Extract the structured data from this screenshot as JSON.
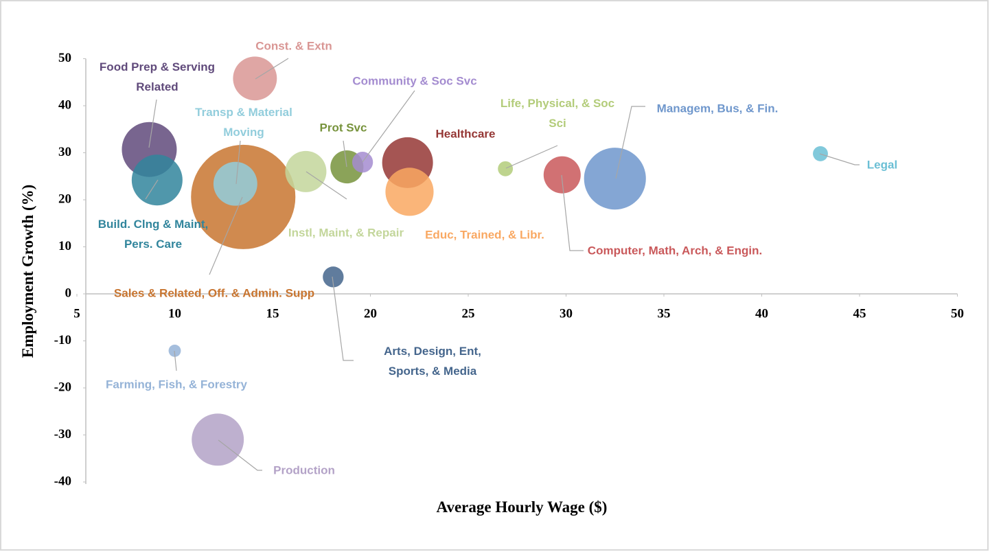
{
  "chart_data": {
    "type": "bubble",
    "xlabel": "Average Hourly Wage ($)",
    "ylabel": "Employment Growth (%)",
    "xlim": [
      5,
      50
    ],
    "xticks": [
      5,
      10,
      15,
      20,
      25,
      30,
      35,
      40,
      45,
      50
    ],
    "ylim": [
      -40,
      50
    ],
    "yticks": [
      -40,
      -30,
      -20,
      -10,
      0,
      10,
      20,
      30,
      40,
      50
    ],
    "series": [
      {
        "name": "Food Prep & Serving Related",
        "color": "#604a7b",
        "x": [
          8.7
        ],
        "values": [
          30.7
        ],
        "sizes": [
          16
        ]
      },
      {
        "name": "Build. Clng & Maint, Pers. Care",
        "color": "#31859c",
        "x": [
          9.1
        ],
        "values": [
          24.2
        ],
        "sizes": [
          13.7
        ]
      },
      {
        "name": "Const. & Extn",
        "color": "#d99694",
        "x": [
          14.1
        ],
        "values": [
          45.8
        ],
        "sizes": [
          10.2
        ]
      },
      {
        "name": "Sales & Related, Off. & Admin. Supp",
        "color": "#c87530",
        "x": [
          13.5
        ],
        "values": [
          20.6
        ],
        "sizes": [
          57.8
        ]
      },
      {
        "name": "Transp & Material Moving",
        "color": "#92cddc",
        "x": [
          13.1
        ],
        "values": [
          23.4
        ],
        "sizes": [
          10.2
        ]
      },
      {
        "name": "Instl, Maint, & Repair",
        "color": "#c3d69b",
        "x": [
          16.7
        ],
        "values": [
          26.0
        ],
        "sizes": [
          9
        ]
      },
      {
        "name": "Prot Svc",
        "color": "#77933c",
        "x": [
          18.8
        ],
        "values": [
          27.0
        ],
        "sizes": [
          5.8
        ]
      },
      {
        "name": "Community & Soc Svc",
        "color": "#a48cd0",
        "x": [
          19.6
        ],
        "values": [
          28.0
        ],
        "sizes": [
          2.3
        ]
      },
      {
        "name": "Healthcare",
        "color": "#953735",
        "x": [
          21.9
        ],
        "values": [
          27.9
        ],
        "sizes": [
          13.7
        ]
      },
      {
        "name": "Educ, Trained, & Libr.",
        "color": "#f9a862",
        "x": [
          22.0
        ],
        "values": [
          21.7
        ],
        "sizes": [
          12.3
        ]
      },
      {
        "name": "Life, Physical, & Soc Sci",
        "color": "#b3cc7a",
        "x": [
          26.9
        ],
        "values": [
          26.6
        ],
        "sizes": [
          1.2
        ]
      },
      {
        "name": "Computer, Math, Arch, & Engin.",
        "color": "#c9585a",
        "x": [
          29.8
        ],
        "values": [
          25.3
        ],
        "sizes": [
          7.3
        ]
      },
      {
        "name": "Managem, Bus, & Fin.",
        "color": "#6f97cc",
        "x": [
          32.5
        ],
        "values": [
          24.5
        ],
        "sizes": [
          20.3
        ]
      },
      {
        "name": "Legal",
        "color": "#6bbfd5",
        "x": [
          43.0
        ],
        "values": [
          29.8
        ],
        "sizes": [
          1.2
        ]
      },
      {
        "name": "Arts, Design, Ent, Sports, & Media",
        "color": "#44658c",
        "x": [
          18.1
        ],
        "values": [
          3.6
        ],
        "sizes": [
          2.3
        ]
      },
      {
        "name": "Farming, Fish, & Forestry",
        "color": "#95b3d7",
        "x": [
          10.0
        ],
        "values": [
          -12.1
        ],
        "sizes": [
          0.8
        ]
      },
      {
        "name": "Production",
        "color": "#b3a2c7",
        "x": [
          12.2
        ],
        "values": [
          -31.0
        ],
        "sizes": [
          14.4
        ]
      }
    ]
  }
}
